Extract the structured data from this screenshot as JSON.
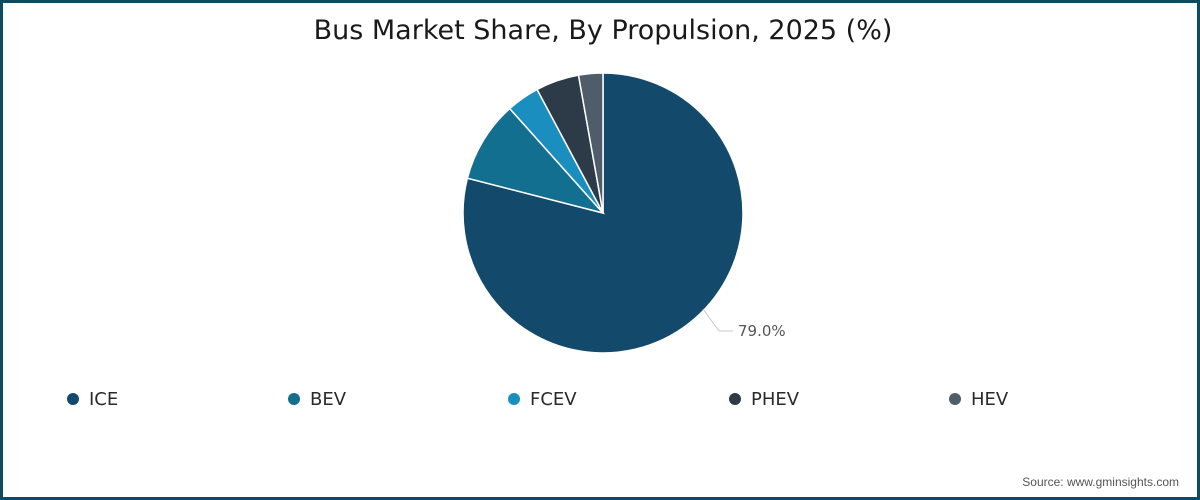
{
  "title": "Bus Market Share, By Propulsion, 2025 (%)",
  "source": "Source: www.gminsights.com",
  "frame_color": "#0f4a63",
  "visible_labels": [
    {
      "series": "ICE",
      "text": "79.0%"
    }
  ],
  "legend": [
    {
      "label": "ICE",
      "color": "#134a6b"
    },
    {
      "label": "BEV",
      "color": "#136f8f"
    },
    {
      "label": "FCEV",
      "color": "#1a8fbf"
    },
    {
      "label": "PHEV",
      "color": "#2d3a48"
    },
    {
      "label": "HEV",
      "color": "#4f5d6b"
    }
  ],
  "chart_data": {
    "type": "pie",
    "title": "Bus Market Share, By Propulsion, 2025 (%)",
    "categories": [
      "ICE",
      "BEV",
      "FCEV",
      "PHEV",
      "HEV"
    ],
    "values": [
      79.0,
      9.4,
      3.8,
      5.0,
      2.8
    ],
    "value_precision": [
      "labeled",
      "estimated",
      "estimated",
      "estimated",
      "estimated"
    ],
    "note": "Only ICE (79.0%) is labeled in the chart. BEV, FCEV, PHEV and HEV values are estimated from slice angles and may be off by roughly ±1 percentage point.",
    "colors": [
      "#134a6b",
      "#136f8f",
      "#1a8fbf",
      "#2d3a48",
      "#4f5d6b"
    ],
    "start_angle_deg": 0,
    "direction": "clockwise",
    "center": [
      600,
      210
    ],
    "radius": 140,
    "legend_position": "bottom",
    "xlabel": "",
    "ylabel": ""
  }
}
